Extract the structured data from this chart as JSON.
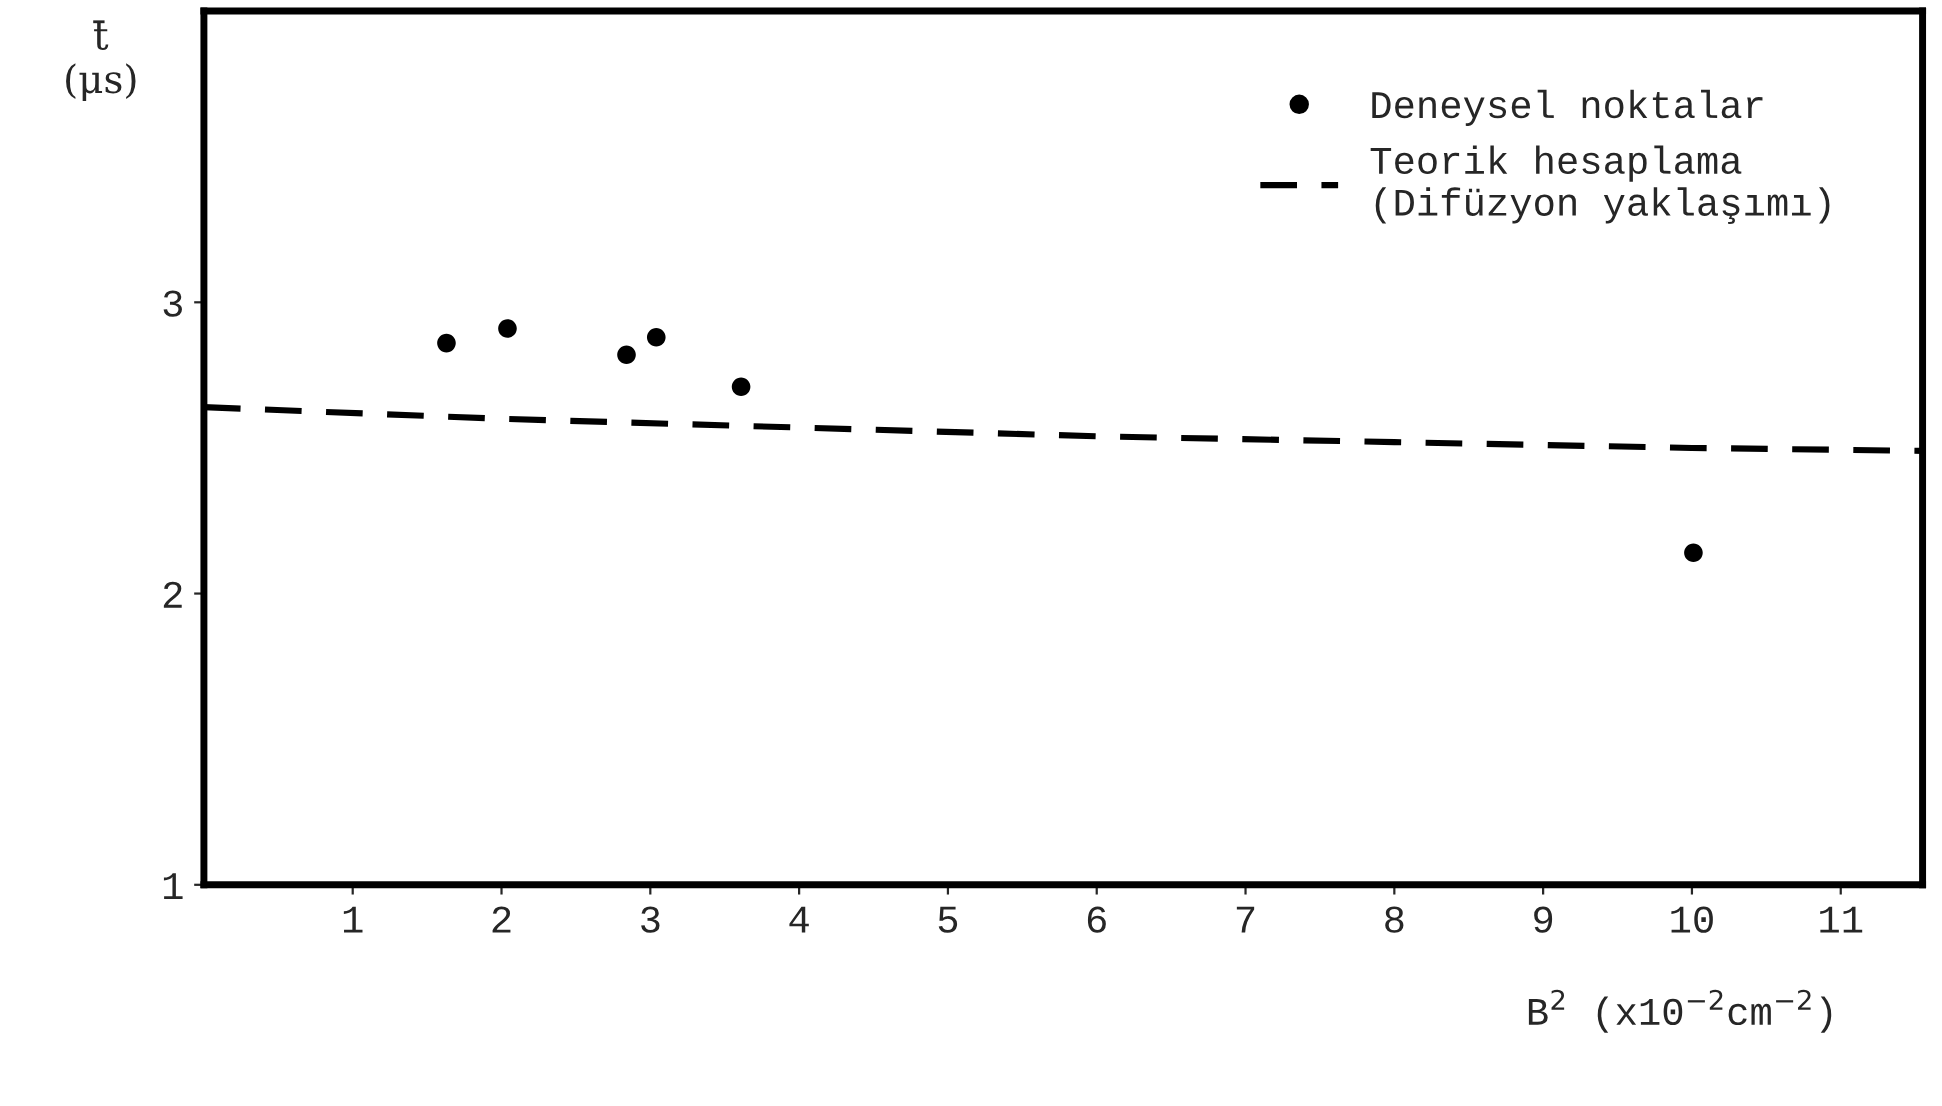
{
  "chart_data": {
    "type": "scatter",
    "xlabel": "B$^{2}$ (x10$^{−2}$cm$^{−2}$)",
    "ylabel": "t̄\n(μs)",
    "series": [
      {
        "name": "Deneysel noktalar",
        "color": "#000000",
        "marker": "circle",
        "x": [
          1.63,
          2.04,
          2.84,
          3.04,
          3.61,
          10.01
        ],
        "values": [
          2.86,
          2.91,
          2.82,
          2.88,
          2.71,
          2.14
        ]
      },
      {
        "name": "Teorik hesaplama\n(Difüzyon yaklaşımı)",
        "type": "line",
        "color": "#000000",
        "line_style": "dashed",
        "marker": "none",
        "x": [
          0,
          2,
          4,
          6,
          8,
          10,
          11.55
        ],
        "values": [
          2.64,
          2.6,
          2.57,
          2.54,
          2.52,
          2.5,
          2.49
        ]
      }
    ],
    "xlim": [
      0,
      11.55
    ],
    "ylim": [
      1,
      4
    ],
    "xticks": [
      1,
      2,
      3,
      4,
      5,
      6,
      7,
      8,
      9,
      10,
      11
    ],
    "yticks": [
      1,
      2,
      3
    ],
    "grid": false,
    "legend": "top right"
  }
}
